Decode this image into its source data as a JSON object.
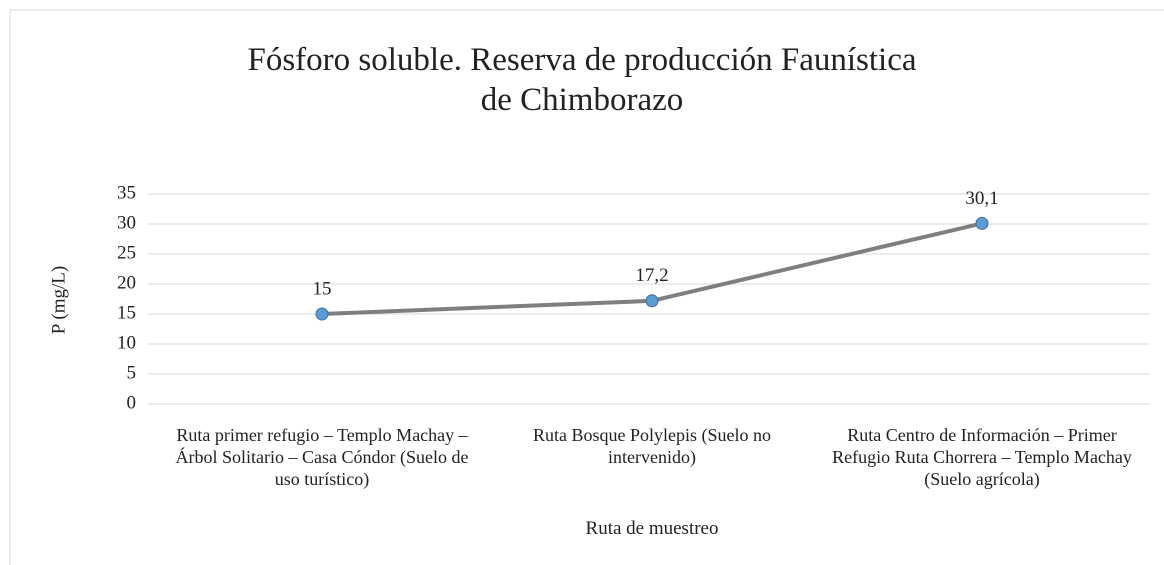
{
  "chart_data": {
    "type": "line",
    "title": "Fósforo soluble. Reserva de producción Faunística de Chimborazo",
    "x_label": "Ruta de muestreo",
    "y_label": "P (mg/L)",
    "categories": [
      "Ruta primer refugio – Templo Machay – Árbol Solitario – Casa Cóndor (Suelo de uso turístico)",
      "Ruta Bosque Polylepis (Suelo no intervenido)",
      "Ruta Centro de Información – Primer Refugio Ruta Chorrera – Templo Machay (Suelo agrícola)"
    ],
    "values": [
      15,
      17.2,
      30.1
    ],
    "value_labels": [
      "15",
      "17,2",
      "30,1"
    ],
    "color": "#7f7f7f",
    "marker_color": "#5b9bd5",
    "ylim": [
      0,
      35
    ],
    "yticks": [
      0,
      5,
      10,
      15,
      20,
      25,
      30,
      35
    ],
    "grid": true
  }
}
